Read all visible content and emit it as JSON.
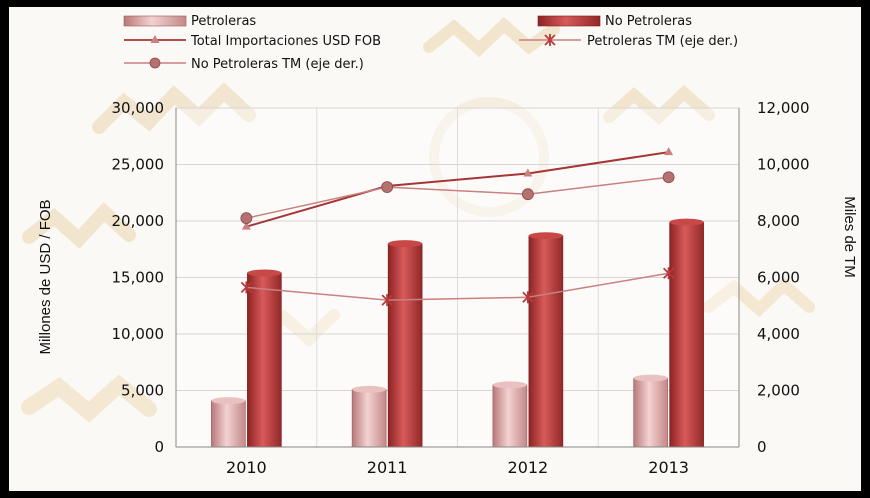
{
  "chart_data": {
    "type": "bar",
    "categories": [
      "2010",
      "2011",
      "2012",
      "2013"
    ],
    "bar_series": [
      {
        "name": "Petroleras",
        "values": [
          4100,
          5100,
          5500,
          6100
        ],
        "color": "#d9a5a5"
      },
      {
        "name": "No Petroleras",
        "values": [
          15400,
          18000,
          18700,
          19900
        ],
        "color": "#b53a3a"
      }
    ],
    "line_series": [
      {
        "name": "Total Importaciones USD FOB",
        "axis": "left",
        "values": [
          19500,
          23100,
          24200,
          26100
        ],
        "marker": "triangle",
        "color": "#a83535"
      },
      {
        "name": "Petroleras TM (eje der.)",
        "axis": "right",
        "values": [
          5650,
          5200,
          5300,
          6150
        ],
        "marker": "star",
        "color": "#c98080"
      },
      {
        "name": "No Petroleras TM (eje der.)",
        "axis": "right",
        "values": [
          8100,
          9200,
          8950,
          9550
        ],
        "marker": "circle",
        "color": "#c98080"
      }
    ],
    "y_left": {
      "label": "Millones de USD / FOB",
      "min": 0,
      "max": 30000,
      "ticks": [
        "0",
        "5,000",
        "10,000",
        "15,000",
        "20,000",
        "25,000",
        "30,000"
      ]
    },
    "y_right": {
      "label": "Miles de  TM",
      "min": 0,
      "max": 12000,
      "ticks": [
        "0",
        "2,000",
        "4,000",
        "6,000",
        "8,000",
        "10,000",
        "12,000"
      ]
    },
    "grid": true,
    "legend_position": "top"
  }
}
